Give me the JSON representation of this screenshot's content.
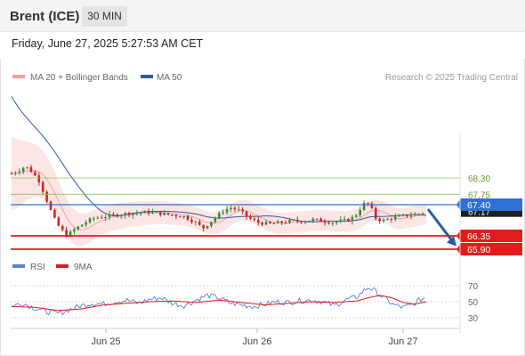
{
  "header": {
    "instrument": "Brent (ICE)",
    "timeframe": "30 MIN",
    "datetime": "Friday, June 27, 2025 5:27:53 AM CET"
  },
  "chart_data": [
    {
      "type": "candlestick",
      "title": "Brent (ICE)",
      "timeframe": "30 MIN",
      "legend": [
        {
          "name": "MA 20 + Bollinger Bands",
          "color": "#f08080"
        },
        {
          "name": "MA 50",
          "color": "#2f5aa0"
        }
      ],
      "copyright": "Research © 2025 Trading Central",
      "x_ticks": [
        "Jun 25",
        "Jun 26",
        "Jun 27"
      ],
      "price_range": [
        65.6,
        69.8
      ],
      "current_price": "67.40",
      "hidden_label": "67.17",
      "levels": [
        {
          "value": 68.3,
          "label": "68.30",
          "kind": "resistance",
          "color": "#8fbf60"
        },
        {
          "value": 67.75,
          "label": "67.75",
          "kind": "resistance",
          "color": "#8fbf60"
        },
        {
          "value": 67.4,
          "label": "67.40",
          "kind": "pivot",
          "color": "#2f6fd8"
        },
        {
          "value": 66.35,
          "label": "66.35",
          "kind": "support",
          "color": "#e21b1b"
        },
        {
          "value": 65.9,
          "label": "65.90",
          "kind": "support",
          "color": "#e21b1b"
        }
      ],
      "forecast_arrow": {
        "from": 67.25,
        "to": 66.0,
        "direction": "down",
        "color": "#2f5aa0"
      },
      "close_path": [
        [
          0,
          68.45
        ],
        [
          6,
          68.55
        ],
        [
          12,
          68.7
        ],
        [
          18,
          68.5
        ],
        [
          24,
          68.2
        ],
        [
          30,
          67.6
        ],
        [
          36,
          67.0
        ],
        [
          42,
          66.6
        ],
        [
          48,
          66.35
        ],
        [
          54,
          66.55
        ],
        [
          60,
          66.7
        ],
        [
          66,
          66.85
        ],
        [
          72,
          66.95
        ],
        [
          80,
          67.0
        ],
        [
          90,
          67.05
        ],
        [
          100,
          67.1
        ],
        [
          110,
          67.12
        ],
        [
          120,
          67.15
        ],
        [
          130,
          67.1
        ],
        [
          140,
          67.05
        ],
        [
          150,
          67.0
        ],
        [
          160,
          66.8
        ],
        [
          166,
          66.6
        ],
        [
          172,
          66.8
        ],
        [
          178,
          67.0
        ],
        [
          184,
          67.2
        ],
        [
          190,
          67.3
        ],
        [
          198,
          67.2
        ],
        [
          206,
          66.95
        ],
        [
          214,
          66.8
        ],
        [
          224,
          66.75
        ],
        [
          234,
          66.8
        ],
        [
          244,
          66.85
        ],
        [
          254,
          66.85
        ],
        [
          262,
          66.9
        ],
        [
          270,
          66.85
        ],
        [
          278,
          66.8
        ],
        [
          286,
          66.85
        ],
        [
          294,
          66.9
        ],
        [
          300,
          67.1
        ],
        [
          304,
          67.35
        ],
        [
          308,
          67.5
        ],
        [
          312,
          67.3
        ],
        [
          316,
          66.95
        ],
        [
          322,
          66.85
        ],
        [
          330,
          66.95
        ],
        [
          338,
          67.0
        ],
        [
          346,
          67.05
        ],
        [
          354,
          67.1
        ],
        [
          360,
          67.17
        ]
      ]
    },
    {
      "type": "line",
      "title": "RSI",
      "legend": [
        {
          "name": "RSI",
          "color": "#5a7fd6"
        },
        {
          "name": "9MA",
          "color": "#e21b1b"
        }
      ],
      "y_ticks": [
        70,
        50,
        30
      ],
      "ylim": [
        20,
        80
      ],
      "rsi_path": [
        [
          0,
          45
        ],
        [
          10,
          48
        ],
        [
          20,
          42
        ],
        [
          30,
          38
        ],
        [
          40,
          35
        ],
        [
          50,
          40
        ],
        [
          60,
          45
        ],
        [
          70,
          48
        ],
        [
          80,
          47
        ],
        [
          90,
          50
        ],
        [
          100,
          52
        ],
        [
          110,
          48
        ],
        [
          120,
          53
        ],
        [
          130,
          55
        ],
        [
          140,
          48
        ],
        [
          150,
          45
        ],
        [
          160,
          52
        ],
        [
          170,
          58
        ],
        [
          180,
          55
        ],
        [
          190,
          48
        ],
        [
          200,
          46
        ],
        [
          210,
          44
        ],
        [
          220,
          47
        ],
        [
          230,
          50
        ],
        [
          240,
          49
        ],
        [
          250,
          51
        ],
        [
          260,
          52
        ],
        [
          270,
          50
        ],
        [
          280,
          45
        ],
        [
          290,
          52
        ],
        [
          300,
          56
        ],
        [
          305,
          63
        ],
        [
          310,
          68
        ],
        [
          315,
          64
        ],
        [
          320,
          58
        ],
        [
          326,
          52
        ],
        [
          332,
          46
        ],
        [
          340,
          43
        ],
        [
          348,
          46
        ],
        [
          354,
          52
        ],
        [
          360,
          56
        ]
      ],
      "ma9_path": [
        [
          0,
          44
        ],
        [
          20,
          43
        ],
        [
          40,
          39
        ],
        [
          60,
          41
        ],
        [
          80,
          46
        ],
        [
          100,
          48
        ],
        [
          120,
          50
        ],
        [
          140,
          51
        ],
        [
          160,
          49
        ],
        [
          180,
          52
        ],
        [
          200,
          49
        ],
        [
          220,
          46
        ],
        [
          240,
          48
        ],
        [
          260,
          50
        ],
        [
          280,
          49
        ],
        [
          300,
          51
        ],
        [
          310,
          55
        ],
        [
          320,
          58
        ],
        [
          330,
          55
        ],
        [
          340,
          49
        ],
        [
          350,
          47
        ],
        [
          360,
          50
        ]
      ]
    }
  ]
}
